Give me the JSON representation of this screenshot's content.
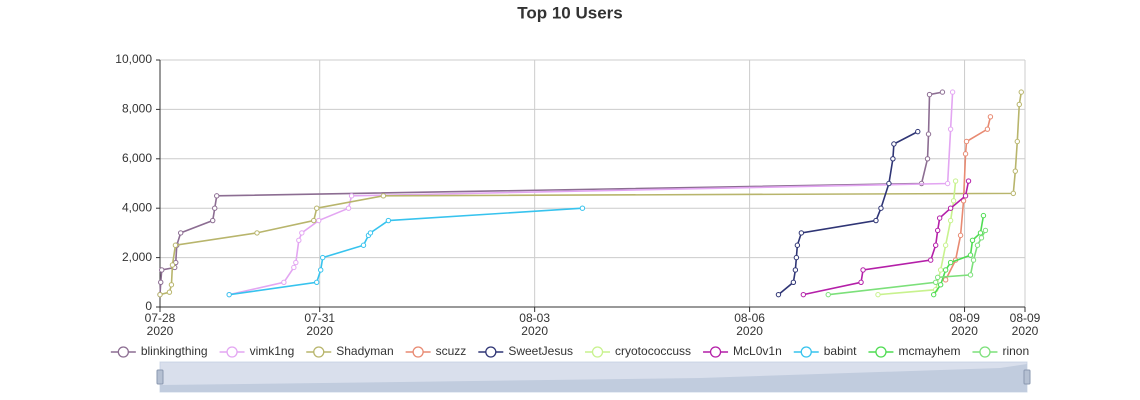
{
  "chart_data": {
    "type": "line",
    "title": "Top 10 Users",
    "xlim": [
      "2020-07-28 18:30",
      "2020-08-09 20:15"
    ],
    "xticks": [
      {
        "value": "2020-07-28 18:30",
        "label": "07-28\n2020"
      },
      {
        "value": "2020-07-31 00:00",
        "label": "07-31\n2020"
      },
      {
        "value": "2020-08-03 00:00",
        "label": "08-03\n2020"
      },
      {
        "value": "2020-08-06 00:00",
        "label": "08-06\n2020"
      },
      {
        "value": "2020-08-09 00:00",
        "label": "08-09\n2020"
      },
      {
        "value": "2020-08-09 20:15",
        "label": "08-09\n2020"
      }
    ],
    "ylim": [
      0,
      10000
    ],
    "yticks": [
      0,
      {
        "value": 2000,
        "label": "2,000"
      },
      {
        "value": 4000,
        "label": "4,000"
      },
      {
        "value": 6000,
        "label": "6,000"
      },
      {
        "value": 8000,
        "label": "8,000"
      },
      {
        "value": 10000,
        "label": "10,000"
      }
    ],
    "grid": true,
    "series": [
      {
        "name": "blinkingthing",
        "color": "#8c6d92",
        "x": [
          "2020-07-28 18:30",
          "2020-07-28 18:45",
          "2020-07-28 19:05",
          "2020-07-28 23:26",
          "2020-07-28 23:47",
          "2020-07-29 00:07",
          "2020-07-29 01:26",
          "2020-07-29 12:10",
          "2020-07-29 12:50",
          "2020-07-29 13:30",
          "2020-08-08 09:36",
          "2020-08-08 11:36",
          "2020-08-08 11:56",
          "2020-08-08 12:16",
          "2020-08-08 16:36"
        ],
        "values": [
          500,
          1000,
          1500,
          1600,
          1800,
          2500,
          3000,
          3500,
          4000,
          4500,
          5000,
          6000,
          7000,
          8600,
          8700
        ]
      },
      {
        "name": "vimk1ng",
        "color": "#e3a6f2",
        "x": [
          "2020-07-29 17:40",
          "2020-07-30 12:00",
          "2020-07-30 15:20",
          "2020-07-30 16:00",
          "2020-07-30 17:00",
          "2020-07-30 18:00",
          "2020-07-30 23:40",
          "2020-07-31 09:40",
          "2020-07-31 10:40",
          "2020-08-08 18:20",
          "2020-08-08 19:20",
          "2020-08-08 20:00"
        ],
        "values": [
          500,
          1000,
          1600,
          1800,
          2700,
          3000,
          3500,
          4000,
          4500,
          5000,
          7200,
          8700
        ]
      },
      {
        "name": "Shadyman",
        "color": "#b8b56c",
        "x": [
          "2020-07-28 18:30",
          "2020-07-28 21:40",
          "2020-07-28 22:20",
          "2020-07-28 22:40",
          "2020-07-28 23:40",
          "2020-07-30 03:00",
          "2020-07-30 22:00",
          "2020-07-30 23:00",
          "2020-07-31 21:20",
          "2020-08-09 16:20",
          "2020-08-09 17:00",
          "2020-08-09 17:40",
          "2020-08-09 18:20",
          "2020-08-09 19:00"
        ],
        "values": [
          500,
          600,
          900,
          1700,
          2500,
          3000,
          3500,
          4000,
          4500,
          4600,
          5500,
          6700,
          8200,
          8700
        ]
      },
      {
        "name": "scuzz",
        "color": "#e88a72",
        "x": [
          "2020-08-08 17:40",
          "2020-08-08 21:00",
          "2020-08-08 22:40",
          "2020-08-08 23:40",
          "2020-08-09 00:20",
          "2020-08-09 00:40",
          "2020-08-09 07:40",
          "2020-08-09 08:40"
        ],
        "values": [
          1100,
          1900,
          2900,
          4300,
          6200,
          6700,
          7200,
          7700
        ]
      },
      {
        "name": "SweetJesus",
        "color": "#2f3575",
        "x": [
          "2020-08-06 09:40",
          "2020-08-06 14:40",
          "2020-08-06 15:20",
          "2020-08-06 15:40",
          "2020-08-06 16:00",
          "2020-08-06 17:20",
          "2020-08-07 18:20",
          "2020-08-07 20:00",
          "2020-08-07 22:40",
          "2020-08-08 00:00",
          "2020-08-08 00:20",
          "2020-08-08 08:20"
        ],
        "values": [
          500,
          1000,
          1500,
          2000,
          2500,
          3000,
          3500,
          4000,
          5000,
          6000,
          6600,
          7100
        ]
      },
      {
        "name": "cryotococcuss",
        "color": "#c8f28e",
        "x": [
          "2020-08-07 19:00",
          "2020-08-08 14:20",
          "2020-08-08 16:00",
          "2020-08-08 17:40",
          "2020-08-08 19:20",
          "2020-08-08 20:20",
          "2020-08-08 21:00"
        ],
        "values": [
          500,
          700,
          1500,
          2500,
          3500,
          4300,
          5100
        ]
      },
      {
        "name": "McL0v1n",
        "color": "#b41fa8",
        "x": [
          "2020-08-06 18:00",
          "2020-08-07 13:20",
          "2020-08-07 14:00",
          "2020-08-08 12:40",
          "2020-08-08 14:20",
          "2020-08-08 15:00",
          "2020-08-08 15:40",
          "2020-08-08 19:20",
          "2020-08-09 00:20",
          "2020-08-09 01:20"
        ],
        "values": [
          500,
          1000,
          1500,
          1900,
          2500,
          3100,
          3600,
          4000,
          4500,
          5100
        ]
      },
      {
        "name": "babint",
        "color": "#37c3ee",
        "x": [
          "2020-07-29 17:40",
          "2020-07-30 23:00",
          "2020-07-31 00:20",
          "2020-07-31 01:00",
          "2020-07-31 14:40",
          "2020-07-31 16:20",
          "2020-07-31 17:00",
          "2020-07-31 23:00",
          "2020-08-03 16:00"
        ],
        "values": [
          500,
          1000,
          1500,
          2000,
          2500,
          2900,
          3000,
          3500,
          4000
        ]
      },
      {
        "name": "mcmayhem",
        "color": "#4fdc52",
        "x": [
          "2020-08-08 13:40",
          "2020-08-08 16:00",
          "2020-08-08 17:40",
          "2020-08-08 19:20",
          "2020-08-09 02:00",
          "2020-08-09 02:40",
          "2020-08-09 05:20",
          "2020-08-09 06:20"
        ],
        "values": [
          500,
          900,
          1500,
          1800,
          2100,
          2700,
          3000,
          3700
        ]
      },
      {
        "name": "rinon",
        "color": "#7ce07a",
        "x": [
          "2020-08-07 02:20",
          "2020-08-08 14:20",
          "2020-08-08 15:00",
          "2020-08-09 02:00",
          "2020-08-09 03:00",
          "2020-08-09 04:20",
          "2020-08-09 05:40",
          "2020-08-09 07:00"
        ],
        "values": [
          500,
          1000,
          1200,
          1300,
          1900,
          2500,
          2800,
          3100
        ]
      }
    ]
  }
}
